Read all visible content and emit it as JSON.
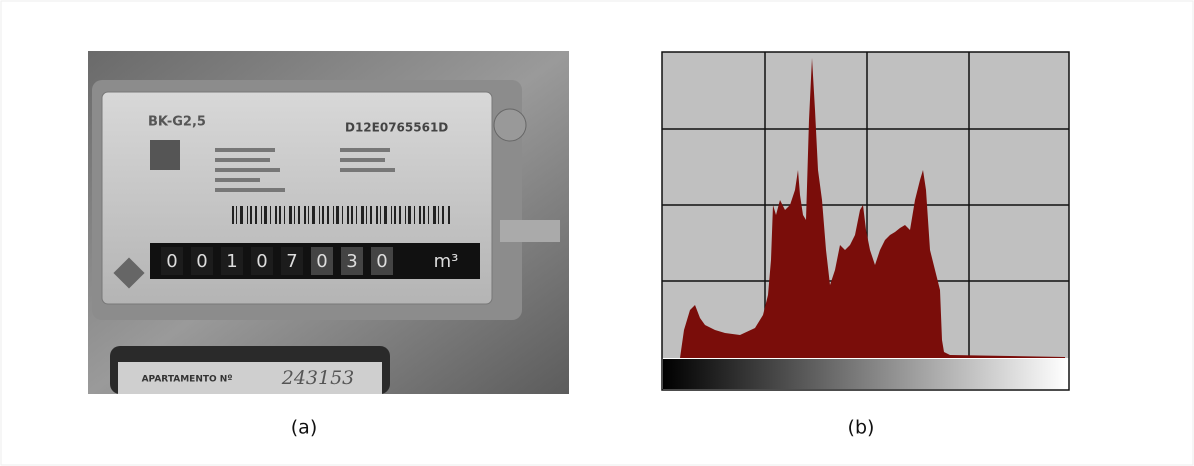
{
  "panel_a": {
    "caption": "(a)",
    "model": "BK-G2,5",
    "serial": "D12E0765561D",
    "counter": [
      "0",
      "0",
      "1",
      "0",
      "7",
      "0",
      "3",
      "0"
    ],
    "unit": "m³",
    "plate": "APARTAMENTO Nº",
    "handwritten": "243153"
  },
  "panel_b": {
    "caption": "(b)"
  }
}
